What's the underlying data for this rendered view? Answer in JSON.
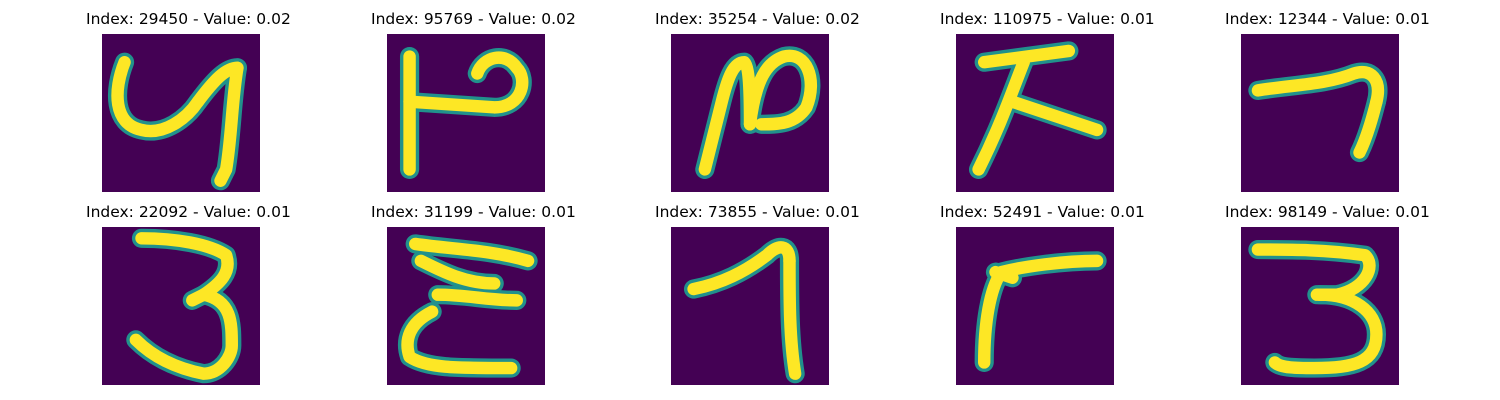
{
  "palette": {
    "background": "#440154",
    "edge": "#21918c",
    "core": "#fde725"
  },
  "panels": [
    {
      "title": "Index: 29450 - Value: 0.02",
      "glyph": "handwritten-4-icon"
    },
    {
      "title": "Index: 95769 - Value: 0.02",
      "glyph": "handwritten-character-icon"
    },
    {
      "title": "Index: 35254 - Value: 0.02",
      "glyph": "handwritten-character-icon"
    },
    {
      "title": "Index: 110975 - Value: 0.01",
      "glyph": "handwritten-character-icon"
    },
    {
      "title": "Index: 12344 - Value: 0.01",
      "glyph": "handwritten-7-icon"
    },
    {
      "title": "Index: 22092 - Value: 0.01",
      "glyph": "handwritten-3-icon"
    },
    {
      "title": "Index: 31199 - Value: 0.01",
      "glyph": "handwritten-character-icon"
    },
    {
      "title": "Index: 73855 - Value: 0.01",
      "glyph": "handwritten-7-icon"
    },
    {
      "title": "Index: 52491 - Value: 0.01",
      "glyph": "handwritten-character-icon"
    },
    {
      "title": "Index: 98149 - Value: 0.01",
      "glyph": "handwritten-3-icon"
    }
  ]
}
